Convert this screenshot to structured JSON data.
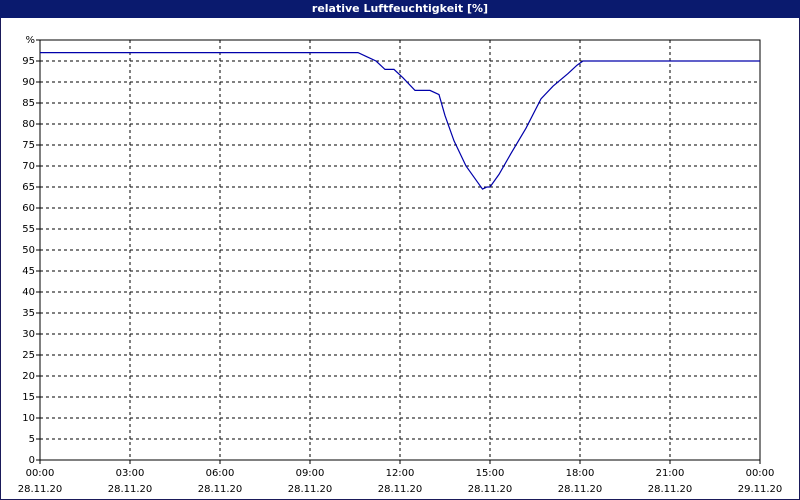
{
  "chart_data": {
    "type": "line",
    "title": "relative Luftfeuchtigkeit [%]",
    "x": [
      0,
      10.6,
      10.9,
      11.2,
      11.5,
      11.8,
      12.1,
      12.5,
      13.0,
      13.3,
      13.5,
      13.8,
      14.2,
      14.6,
      14.75,
      14.9,
      15.0,
      15.3,
      15.7,
      16.2,
      16.7,
      17.1,
      17.6,
      17.9,
      18.1,
      24
    ],
    "series": [
      {
        "name": "relative Luftfeuchtigkeit",
        "color": "#0000aa",
        "values": [
          97,
          97,
          96,
          95,
          93,
          93,
          91,
          88,
          88,
          87,
          82,
          76,
          70,
          66,
          64.5,
          65,
          65,
          68,
          73,
          79,
          86,
          89,
          92,
          94,
          95,
          95
        ]
      }
    ],
    "xlim": [
      0,
      24
    ],
    "xticks": [
      {
        "value": 0,
        "label": "00:00"
      },
      {
        "value": 3,
        "label": "03:00"
      },
      {
        "value": 6,
        "label": "06:00"
      },
      {
        "value": 9,
        "label": "09:00"
      },
      {
        "value": 12,
        "label": "12:00"
      },
      {
        "value": 15,
        "label": "15:00"
      },
      {
        "value": 18,
        "label": "18:00"
      },
      {
        "value": 21,
        "label": "21:00"
      },
      {
        "value": 24,
        "label": "00:00"
      }
    ],
    "xtick_dates": [
      "28.11.20",
      "28.11.20",
      "28.11.20",
      "28.11.20",
      "28.11.20",
      "28.11.20",
      "28.11.20",
      "28.11.20",
      "29.11.20"
    ],
    "ylim": [
      0,
      100
    ],
    "yticks": [
      0,
      5,
      10,
      15,
      20,
      25,
      30,
      35,
      40,
      45,
      50,
      55,
      60,
      65,
      70,
      75,
      80,
      85,
      90,
      95,
      {
        "value": 100,
        "label": "%"
      }
    ],
    "grid": true
  }
}
